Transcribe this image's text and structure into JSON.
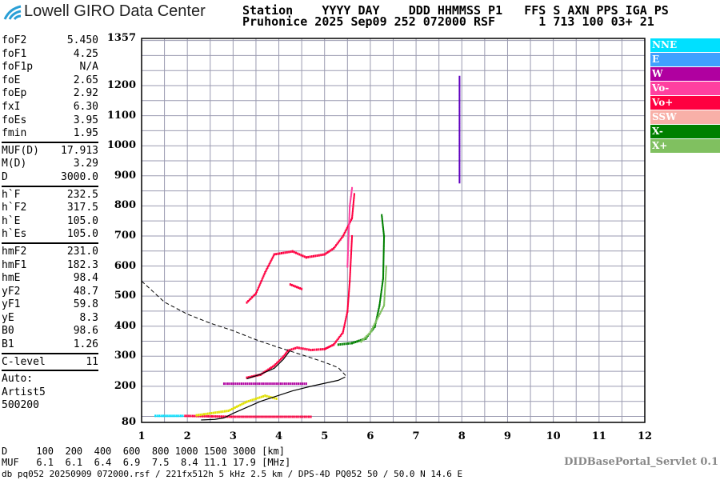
{
  "header": {
    "logo_text": "Lowell GIRO Data Center",
    "line1": "Station    YYYY DAY    DDD HHMMSS P1   FFS S AXN PPS IGA PS",
    "line2": "Pruhonice 2025 Sep09 252 072000 RSF      1 713 100 03+ 21"
  },
  "params": [
    [
      {
        "k": "foF2",
        "v": "5.450"
      },
      {
        "k": "foF1",
        "v": "4.25"
      },
      {
        "k": "foF1p",
        "v": "N/A"
      },
      {
        "k": "foE",
        "v": "2.65"
      },
      {
        "k": "foEp",
        "v": "2.92"
      },
      {
        "k": "fxI",
        "v": "6.30"
      },
      {
        "k": "foEs",
        "v": "3.95"
      },
      {
        "k": "fmin",
        "v": "1.95"
      }
    ],
    [
      {
        "k": "MUF(D)",
        "v": "17.913"
      },
      {
        "k": "M(D)",
        "v": "3.29"
      },
      {
        "k": "D",
        "v": "3000.0"
      }
    ],
    [
      {
        "k": "h`F",
        "v": "232.5"
      },
      {
        "k": "h`F2",
        "v": "317.5"
      },
      {
        "k": "h`E",
        "v": "105.0"
      },
      {
        "k": "h`Es",
        "v": "105.0"
      }
    ],
    [
      {
        "k": "hmF2",
        "v": "231.0"
      },
      {
        "k": "hmF1",
        "v": "182.3"
      },
      {
        "k": "hmE",
        "v": "98.4"
      },
      {
        "k": "yF2",
        "v": "48.7"
      },
      {
        "k": "yF1",
        "v": "59.8"
      },
      {
        "k": "yE",
        "v": "8.3"
      },
      {
        "k": "B0",
        "v": "98.6"
      },
      {
        "k": "B1",
        "v": "1.26"
      }
    ],
    [
      {
        "k": "C-level",
        "v": "11"
      }
    ]
  ],
  "auto": {
    "l1": "Auto:",
    "l2": "Artist5",
    "l3": "500200"
  },
  "legend": [
    {
      "label": "NNE",
      "color": "#00e0ff"
    },
    {
      "label": "E",
      "color": "#40a0ff"
    },
    {
      "label": "W",
      "color": "#b000a0"
    },
    {
      "label": "Vo-",
      "color": "#ff40a0"
    },
    {
      "label": "Vo+",
      "color": "#ff0040"
    },
    {
      "label": "SSW",
      "color": "#f8b0a8"
    },
    {
      "label": "X-",
      "color": "#008000"
    },
    {
      "label": "X+",
      "color": "#80c060"
    }
  ],
  "bottom": {
    "d_row": "D     100  200  400  600  800 1000 1500 3000 [km]",
    "muf_row": "MUF   6.1  6.1  6.4  6.9  7.5  8.4 11.1 17.9 [MHz]",
    "footer": "db pq052 20250909 072000.rsf / 221fx512h 5 kHz 2.5 km / DPS-4D PQ052 50 / 50.0 N 14.6 E",
    "servlet": "DIDBasePortal_Servlet 0.1"
  },
  "chart_data": {
    "type": "scatter",
    "xlim": [
      1,
      12
    ],
    "ylim": [
      80,
      1357
    ],
    "xticks": [
      "1",
      "2",
      "3",
      "4",
      "5",
      "6",
      "7",
      "8",
      "9",
      "10",
      "11",
      "12"
    ],
    "yticks": [
      "80",
      "200",
      "300",
      "400",
      "500",
      "600",
      "700",
      "800",
      "900",
      "1000",
      "1100",
      "1200",
      "1357"
    ],
    "grid": true,
    "traces": [
      {
        "pol": "Vo+",
        "color": "#ff0040",
        "points": [
          [
            3.3,
            230
          ],
          [
            3.6,
            240
          ],
          [
            3.9,
            270
          ],
          [
            4.1,
            300
          ],
          [
            4.2,
            320
          ],
          [
            4.4,
            330
          ],
          [
            4.7,
            322
          ],
          [
            5.0,
            325
          ],
          [
            5.2,
            340
          ],
          [
            5.4,
            380
          ],
          [
            5.5,
            450
          ],
          [
            5.55,
            550
          ],
          [
            5.6,
            700
          ]
        ]
      },
      {
        "pol": "Vo+",
        "color": "#ff0040",
        "points": [
          [
            3.3,
            480
          ],
          [
            3.5,
            510
          ],
          [
            3.7,
            580
          ],
          [
            3.9,
            640
          ],
          [
            4.3,
            650
          ],
          [
            4.6,
            630
          ],
          [
            5.0,
            640
          ],
          [
            5.2,
            660
          ],
          [
            5.4,
            700
          ],
          [
            5.6,
            760
          ],
          [
            5.65,
            840
          ]
        ]
      },
      {
        "pol": "Vo+",
        "color": "#ff0040",
        "points": [
          [
            4.25,
            540
          ],
          [
            4.5,
            525
          ]
        ]
      },
      {
        "pol": "X-",
        "color": "#008000",
        "points": [
          [
            5.3,
            340
          ],
          [
            5.6,
            345
          ],
          [
            5.9,
            360
          ],
          [
            6.1,
            400
          ],
          [
            6.2,
            470
          ],
          [
            6.28,
            560
          ],
          [
            6.3,
            700
          ],
          [
            6.25,
            770
          ]
        ]
      },
      {
        "pol": "X+",
        "color": "#80c060",
        "points": [
          [
            5.8,
            350
          ],
          [
            6.0,
            380
          ],
          [
            6.3,
            470
          ],
          [
            6.35,
            600
          ]
        ]
      },
      {
        "pol": "Vo-",
        "color": "#ff40a0",
        "points": [
          [
            5.5,
            600
          ],
          [
            5.55,
            800
          ],
          [
            5.6,
            860
          ]
        ]
      },
      {
        "pol": "W",
        "color": "#b000a0",
        "points": [
          [
            2.8,
            210
          ],
          [
            4.6,
            210
          ]
        ]
      },
      {
        "pol": "Vo+",
        "color": "#ff0040",
        "points": [
          [
            1.95,
            103
          ],
          [
            3.0,
            100
          ],
          [
            4.7,
            100
          ]
        ]
      },
      {
        "pol": "SSW",
        "color": "#e0e000",
        "points": [
          [
            2.2,
            105
          ],
          [
            2.9,
            120
          ],
          [
            3.3,
            150
          ],
          [
            3.7,
            170
          ],
          [
            3.95,
            160
          ]
        ]
      },
      {
        "pol": "W",
        "color": "#6000c0",
        "points": [
          [
            7.95,
            880
          ],
          [
            7.95,
            1230
          ]
        ]
      },
      {
        "pol": "NNE",
        "color": "#00e0ff",
        "points": [
          [
            1.3,
            103
          ],
          [
            1.9,
            103
          ]
        ]
      }
    ],
    "muf_curve": [
      [
        1,
        550
      ],
      [
        1.5,
        480
      ],
      [
        2,
        440
      ],
      [
        2.5,
        410
      ],
      [
        3,
        385
      ],
      [
        3.5,
        355
      ],
      [
        4,
        329
      ],
      [
        4.5,
        305
      ],
      [
        5,
        280
      ],
      [
        5.3,
        262
      ],
      [
        5.46,
        236
      ]
    ],
    "profile": [
      [
        2.3,
        88
      ],
      [
        2.6,
        90
      ],
      [
        2.8,
        95
      ],
      [
        3.0,
        110
      ],
      [
        3.3,
        130
      ],
      [
        3.6,
        150
      ],
      [
        4.0,
        170
      ],
      [
        4.3,
        185
      ],
      [
        4.7,
        200
      ],
      [
        5.0,
        210
      ],
      [
        5.3,
        220
      ],
      [
        5.45,
        231
      ]
    ],
    "profile_upper": [
      [
        3.3,
        225
      ],
      [
        3.6,
        240
      ],
      [
        3.9,
        260
      ],
      [
        4.1,
        290
      ],
      [
        4.25,
        320
      ]
    ]
  }
}
